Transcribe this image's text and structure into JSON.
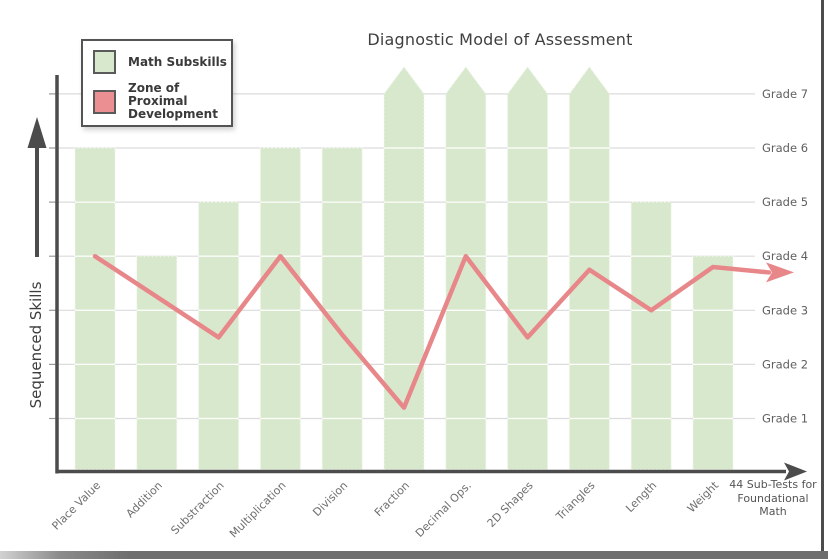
{
  "chart_data": {
    "type": "bar+line",
    "title": "Diagnostic Model of Assessment",
    "ylabel": "Sequenced Skills",
    "x_axis_end_label_lines": [
      "44 Sub-Tests for",
      "Foundational",
      "Math"
    ],
    "grade_labels": [
      "Grade 7",
      "Grade 6",
      "Grade 5",
      "Grade 4",
      "Grade 3",
      "Grade 2",
      "Grade 1"
    ],
    "categories": [
      "Place Value",
      "Addition",
      "Substraction",
      "Multiplication",
      "Division",
      "Fraction",
      "Decimal Ops.",
      "2D Shapes",
      "Triangles",
      "Length",
      "Weight"
    ],
    "series": [
      {
        "name": "Math Subskills",
        "type": "bar",
        "color": "#d8e8cd",
        "values_grade": [
          6,
          4,
          5,
          6,
          6,
          7.5,
          7.5,
          7.5,
          7.5,
          5,
          4
        ],
        "arrow_top": [
          false,
          false,
          false,
          false,
          false,
          true,
          true,
          true,
          true,
          false,
          false
        ]
      },
      {
        "name": "Zone of Proximal Development",
        "type": "line",
        "color": "#e8878a",
        "values_grade": [
          4.0,
          3.25,
          2.5,
          4.0,
          2.55,
          1.2,
          4.0,
          2.5,
          3.75,
          3.0,
          3.8
        ],
        "trailing_arrow_grade": 3.7
      }
    ],
    "legend": {
      "position": "top-left",
      "items": [
        {
          "label": "Math Subskills",
          "swatch_color": "#d8e8cd"
        },
        {
          "label": "Zone of Proximal Development",
          "swatch_color": "#ec8f93"
        }
      ]
    },
    "axis_ranges": {
      "grades": [
        1,
        7
      ]
    },
    "grid": true,
    "colors": {
      "axis": "#4c4c4c",
      "gridline": "#dcdcdc",
      "grade_label_text": "#5f5f5f",
      "category_label_text": "#6e6e6e",
      "title_text": "#3f3f3f"
    }
  }
}
